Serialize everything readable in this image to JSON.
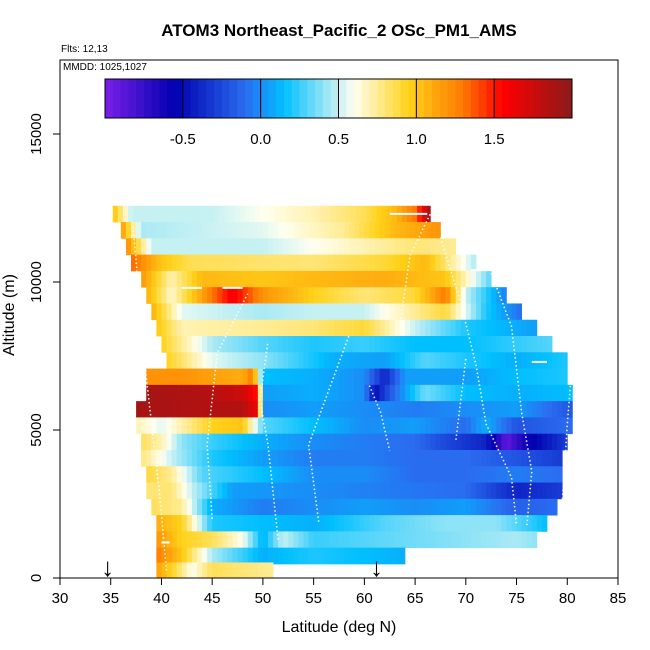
{
  "chart_data": {
    "type": "heatmap",
    "title": "ATOM3 Northeast_Pacific_2 OSc_PM1_AMS",
    "flights_label": "Flts: 12,13",
    "dates_label": "MMDD: 1025,1027",
    "xlabel": "Latitude (deg N)",
    "ylabel": "Altitude (m)",
    "xlim": [
      30,
      85
    ],
    "ylim": [
      0,
      17500
    ],
    "x_ticks": [
      "30",
      "35",
      "40",
      "45",
      "50",
      "55",
      "60",
      "65",
      "70",
      "75",
      "80",
      "85"
    ],
    "x_tick_values": [
      30,
      35,
      40,
      45,
      50,
      55,
      60,
      65,
      70,
      75,
      80,
      85
    ],
    "y_ticks": [
      "0",
      "5000",
      "10000",
      "15000"
    ],
    "y_tick_values": [
      0,
      5000,
      10000,
      15000
    ],
    "colorbar": {
      "range": [
        -1.0,
        2.0
      ],
      "tick_labels": [
        "-0.5",
        "0.0",
        "0.5",
        "1.0",
        "1.5"
      ],
      "tick_values": [
        -0.5,
        0.0,
        0.5,
        1.0,
        1.5
      ],
      "colors": [
        "#7a1fe8",
        "#0000b0",
        "#2a6cf0",
        "#00bfff",
        "#fffff0",
        "#ffd21a",
        "#ff7a00",
        "#ff0000",
        "#8b1a1a"
      ],
      "stops": [
        -1.0,
        -0.55,
        -0.1,
        0.15,
        0.6,
        0.95,
        1.3,
        1.55,
        2.0
      ]
    },
    "arrows_latitude": [
      34.7,
      61.2
    ],
    "arrow_glyphs": [
      "↓",
      "↓"
    ],
    "series": [
      {
        "alt": 12300,
        "lat_start": 35.2,
        "lat_end": 66.5,
        "knots": [
          [
            35.2,
            1.05
          ],
          [
            37,
            0.5
          ],
          [
            45,
            0.5
          ],
          [
            55,
            0.7
          ],
          [
            60,
            0.85
          ],
          [
            63,
            1.05
          ],
          [
            65,
            1.3
          ],
          [
            66.5,
            1.9
          ]
        ]
      },
      {
        "alt": 11750,
        "lat_start": 36.0,
        "lat_end": 67.5,
        "knots": [
          [
            36,
            1.2
          ],
          [
            38,
            0.45
          ],
          [
            50,
            0.55
          ],
          [
            58,
            0.75
          ],
          [
            63,
            1.05
          ],
          [
            67.5,
            1.2
          ]
        ]
      },
      {
        "alt": 11200,
        "lat_start": 36.5,
        "lat_end": 69.0,
        "knots": [
          [
            36.5,
            1.25
          ],
          [
            39,
            0.5
          ],
          [
            50,
            0.5
          ],
          [
            60,
            0.7
          ],
          [
            65,
            0.8
          ],
          [
            69,
            0.75
          ]
        ]
      },
      {
        "alt": 10650,
        "lat_start": 37.0,
        "lat_end": 71.0,
        "knots": [
          [
            37,
            1.35
          ],
          [
            40,
            1.0
          ],
          [
            43,
            0.85
          ],
          [
            55,
            0.8
          ],
          [
            62,
            0.9
          ],
          [
            66,
            1.05
          ],
          [
            71,
            0.45
          ]
        ]
      },
      {
        "alt": 10100,
        "lat_start": 38.0,
        "lat_end": 72.5,
        "knots": [
          [
            38,
            1.2
          ],
          [
            41,
            0.7
          ],
          [
            44,
            1.05
          ],
          [
            50,
            1.0
          ],
          [
            55,
            1.05
          ],
          [
            62,
            1.1
          ],
          [
            68,
            1.0
          ],
          [
            72.5,
            0.3
          ]
        ]
      },
      {
        "alt": 9550,
        "lat_start": 38.5,
        "lat_end": 74.0,
        "knots": [
          [
            38.5,
            1.1
          ],
          [
            41,
            0.65
          ],
          [
            45,
            1.3
          ],
          [
            47,
            1.6
          ],
          [
            50,
            1.2
          ],
          [
            55,
            0.95
          ],
          [
            60,
            0.8
          ],
          [
            65,
            0.9
          ],
          [
            68,
            1.3
          ],
          [
            70,
            0.5
          ],
          [
            74,
            -0.05
          ]
        ]
      },
      {
        "alt": 9000,
        "lat_start": 39.0,
        "lat_end": 75.5,
        "knots": [
          [
            39,
            1.1
          ],
          [
            42,
            0.55
          ],
          [
            50,
            0.45
          ],
          [
            55,
            0.5
          ],
          [
            60,
            0.5
          ],
          [
            65,
            0.75
          ],
          [
            68,
            0.9
          ],
          [
            72,
            0.2
          ],
          [
            75.5,
            -0.1
          ]
        ]
      },
      {
        "alt": 8450,
        "lat_start": 39.5,
        "lat_end": 77.0,
        "knots": [
          [
            39.5,
            1.0
          ],
          [
            42,
            0.7
          ],
          [
            50,
            0.75
          ],
          [
            55,
            0.8
          ],
          [
            60,
            0.9
          ],
          [
            65,
            0.5
          ],
          [
            70,
            0.2
          ],
          [
            77,
            0.05
          ]
        ]
      },
      {
        "alt": 7900,
        "lat_start": 40.0,
        "lat_end": 78.5,
        "knots": [
          [
            40,
            0.95
          ],
          [
            45,
            0.45
          ],
          [
            50,
            0.3
          ],
          [
            55,
            0.2
          ],
          [
            60,
            0.25
          ],
          [
            65,
            0.15
          ],
          [
            70,
            0.15
          ],
          [
            78.5,
            0.3
          ]
        ]
      },
      {
        "alt": 7350,
        "lat_start": 40.5,
        "lat_end": 80.0,
        "knots": [
          [
            40.5,
            0.95
          ],
          [
            45,
            0.55
          ],
          [
            50,
            0.4
          ],
          [
            57,
            0.1
          ],
          [
            62,
            0.05
          ],
          [
            66,
            0.3
          ],
          [
            70,
            0.2
          ],
          [
            75,
            0.1
          ],
          [
            80,
            0.2
          ]
        ]
      },
      {
        "alt": 6800,
        "lat_start": 38.5,
        "lat_end": 80.0,
        "knots": [
          [
            38.5,
            1.2
          ],
          [
            42,
            1.2
          ],
          [
            45,
            1.15
          ],
          [
            48,
            1.1
          ],
          [
            49,
            1.3
          ],
          [
            50,
            0.15
          ],
          [
            55,
            0.1
          ],
          [
            60,
            0.0
          ],
          [
            62,
            -0.4
          ],
          [
            64,
            0.05
          ],
          [
            70,
            0.05
          ],
          [
            75,
            0.15
          ],
          [
            80,
            0.2
          ]
        ]
      },
      {
        "alt": 6250,
        "lat_start": 38.5,
        "lat_end": 80.5,
        "knots": [
          [
            38.5,
            1.9
          ],
          [
            44,
            1.85
          ],
          [
            48,
            1.75
          ],
          [
            49.5,
            1.5
          ],
          [
            50,
            0.05
          ],
          [
            55,
            0.1
          ],
          [
            60,
            0.0
          ],
          [
            61,
            -0.5
          ],
          [
            63,
            -0.1
          ],
          [
            66,
            0.35
          ],
          [
            70,
            0.15
          ],
          [
            75,
            0.1
          ],
          [
            80.5,
            0.15
          ]
        ]
      },
      {
        "alt": 5700,
        "lat_start": 37.5,
        "lat_end": 80.5,
        "knots": [
          [
            37.5,
            1.9
          ],
          [
            44,
            1.85
          ],
          [
            48,
            1.85
          ],
          [
            49.5,
            1.6
          ],
          [
            50,
            0.0
          ],
          [
            55,
            0.05
          ],
          [
            60,
            0.0
          ],
          [
            65,
            -0.05
          ],
          [
            70,
            0.0
          ],
          [
            75,
            0.05
          ],
          [
            80.5,
            -0.2
          ]
        ]
      },
      {
        "alt": 5150,
        "lat_start": 37.5,
        "lat_end": 80.5,
        "knots": [
          [
            37.5,
            0.7
          ],
          [
            40,
            0.55
          ],
          [
            45,
            0.95
          ],
          [
            48,
            1.0
          ],
          [
            50,
            0.3
          ],
          [
            55,
            0.15
          ],
          [
            60,
            0.0
          ],
          [
            65,
            0.05
          ],
          [
            70,
            -0.1
          ],
          [
            72,
            0.1
          ],
          [
            75,
            -0.2
          ],
          [
            80.5,
            -0.1
          ]
        ]
      },
      {
        "alt": 4600,
        "lat_start": 38.0,
        "lat_end": 80.0,
        "knots": [
          [
            38,
            0.85
          ],
          [
            40,
            0.7
          ],
          [
            42,
            0.4
          ],
          [
            45,
            0.25
          ],
          [
            50,
            0.1
          ],
          [
            55,
            0.0
          ],
          [
            60,
            -0.05
          ],
          [
            65,
            -0.1
          ],
          [
            68,
            -0.25
          ],
          [
            72,
            -0.4
          ],
          [
            74,
            -0.9
          ],
          [
            76,
            -0.6
          ],
          [
            80,
            -0.3
          ]
        ]
      },
      {
        "alt": 4050,
        "lat_start": 38.0,
        "lat_end": 79.5,
        "knots": [
          [
            38,
            0.8
          ],
          [
            41,
            0.5
          ],
          [
            45,
            0.2
          ],
          [
            50,
            0.05
          ],
          [
            55,
            -0.05
          ],
          [
            60,
            -0.05
          ],
          [
            65,
            -0.1
          ],
          [
            70,
            -0.1
          ],
          [
            75,
            -0.2
          ],
          [
            79.5,
            -0.3
          ]
        ]
      },
      {
        "alt": 3500,
        "lat_start": 38.5,
        "lat_end": 79.5,
        "knots": [
          [
            38.5,
            0.9
          ],
          [
            41,
            0.75
          ],
          [
            44,
            0.3
          ],
          [
            50,
            0.15
          ],
          [
            55,
            0.0
          ],
          [
            60,
            0.0
          ],
          [
            65,
            -0.1
          ],
          [
            70,
            -0.1
          ],
          [
            75,
            -0.05
          ],
          [
            79.5,
            -0.1
          ]
        ]
      },
      {
        "alt": 2950,
        "lat_start": 38.5,
        "lat_end": 79.5,
        "knots": [
          [
            38.5,
            0.8
          ],
          [
            41,
            0.8
          ],
          [
            43,
            0.5
          ],
          [
            47,
            0.05
          ],
          [
            55,
            0.0
          ],
          [
            62,
            -0.05
          ],
          [
            70,
            -0.1
          ],
          [
            75,
            -0.4
          ],
          [
            79.5,
            -0.3
          ]
        ]
      },
      {
        "alt": 2400,
        "lat_start": 39.0,
        "lat_end": 79.0,
        "knots": [
          [
            39,
            0.85
          ],
          [
            42,
            0.75
          ],
          [
            45,
            0.1
          ],
          [
            50,
            -0.05
          ],
          [
            55,
            0.0
          ],
          [
            60,
            0.05
          ],
          [
            65,
            0.0
          ],
          [
            70,
            0.05
          ],
          [
            75,
            -0.15
          ],
          [
            79,
            -0.1
          ]
        ]
      },
      {
        "alt": 1850,
        "lat_start": 39.5,
        "lat_end": 78.0,
        "knots": [
          [
            39.5,
            1.1
          ],
          [
            42,
            0.95
          ],
          [
            45,
            0.2
          ],
          [
            50,
            0.15
          ],
          [
            55,
            0.1
          ],
          [
            62,
            0.3
          ],
          [
            68,
            0.4
          ],
          [
            73,
            0.4
          ],
          [
            78,
            0.15
          ]
        ]
      },
      {
        "alt": 1300,
        "lat_start": 39.5,
        "lat_end": 77.0,
        "knots": [
          [
            39.5,
            1.2
          ],
          [
            42,
            0.95
          ],
          [
            45,
            0.85
          ],
          [
            48,
            0.6
          ],
          [
            50,
            0.1
          ],
          [
            52,
            0.5
          ],
          [
            55,
            0.25
          ],
          [
            60,
            0.3
          ],
          [
            65,
            0.35
          ],
          [
            70,
            0.4
          ],
          [
            75,
            0.45
          ],
          [
            77,
            0.4
          ]
        ]
      },
      {
        "alt": 750,
        "lat_start": 39.5,
        "lat_end": 64.0,
        "knots": [
          [
            39.5,
            1.3
          ],
          [
            42,
            1.0
          ],
          [
            45,
            0.45
          ],
          [
            48,
            0.25
          ],
          [
            50,
            0.1
          ],
          [
            52,
            0.15
          ],
          [
            55,
            0.2
          ],
          [
            60,
            0.15
          ],
          [
            64,
            0.1
          ]
        ]
      },
      {
        "alt": 250,
        "lat_start": 39.5,
        "lat_end": 51.0,
        "knots": [
          [
            39.5,
            1.15
          ],
          [
            41,
            0.95
          ],
          [
            43,
            0.6
          ],
          [
            45,
            0.85
          ],
          [
            48,
            0.8
          ],
          [
            51,
            0.75
          ]
        ]
      }
    ]
  }
}
